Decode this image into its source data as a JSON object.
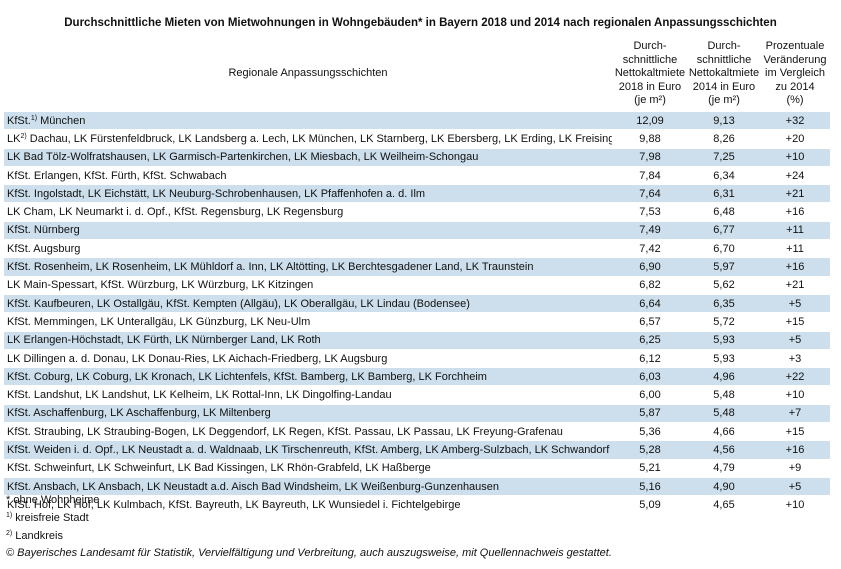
{
  "title": "Durchschnittliche Mieten von Mietwohnungen in Wohngebäuden* in Bayern 2018 und 2014 nach regionalen Anpassungsschichten",
  "table": {
    "header": {
      "region": "Regionale Anpassungsschichten",
      "col_2018": [
        "Durch-",
        "schnittliche",
        "Nettokaltmiete",
        "2018 in Euro",
        "(je m²)"
      ],
      "col_2014": [
        "Durch-",
        "schnittliche",
        "Nettokaltmiete",
        "2014 in Euro",
        "(je m²)"
      ],
      "col_change": [
        "Prozentuale",
        "Veränderung",
        "im Vergleich",
        "zu 2014",
        "(%)"
      ]
    },
    "rows": [
      {
        "region_prefix": "KfSt.",
        "region_sup": "1)",
        "region": " München",
        "mieten_2018": "12,09",
        "mieten_2014": "9,13",
        "change": "+32"
      },
      {
        "region_prefix": "LK",
        "region_sup": "2)",
        "region": " Dachau, LK Fürstenfeldbruck, LK Landsberg a. Lech, LK München, LK Starnberg, LK Ebersberg, LK Erding, LK Freising",
        "mieten_2018": "9,88",
        "mieten_2014": "8,26",
        "change": "+20"
      },
      {
        "region": "LK Bad Tölz-Wolfratshausen, LK Garmisch-Partenkirchen, LK Miesbach, LK Weilheim-Schongau",
        "mieten_2018": "7,98",
        "mieten_2014": "7,25",
        "change": "+10"
      },
      {
        "region": "KfSt. Erlangen, KfSt. Fürth, KfSt. Schwabach",
        "mieten_2018": "7,84",
        "mieten_2014": "6,34",
        "change": "+24"
      },
      {
        "region": "KfSt. Ingolstadt, LK Eichstätt, LK Neuburg-Schrobenhausen, LK Pfaffenhofen a. d. Ilm",
        "mieten_2018": "7,64",
        "mieten_2014": "6,31",
        "change": "+21"
      },
      {
        "region": "LK Cham, LK Neumarkt i. d. Opf., KfSt. Regensburg, LK Regensburg",
        "mieten_2018": "7,53",
        "mieten_2014": "6,48",
        "change": "+16"
      },
      {
        "region": "KfSt. Nürnberg",
        "mieten_2018": "7,49",
        "mieten_2014": "6,77",
        "change": "+11"
      },
      {
        "region": "KfSt. Augsburg",
        "mieten_2018": "7,42",
        "mieten_2014": "6,70",
        "change": "+11"
      },
      {
        "region": "KfSt. Rosenheim, LK Rosenheim, LK Mühldorf a. Inn, LK Altötting, LK Berchtesgadener Land, LK Traunstein",
        "mieten_2018": "6,90",
        "mieten_2014": "5,97",
        "change": "+16"
      },
      {
        "region": "LK Main-Spessart, KfSt. Würzburg, LK Würzburg, LK Kitzingen",
        "mieten_2018": "6,82",
        "mieten_2014": "5,62",
        "change": "+21"
      },
      {
        "region": "KfSt. Kaufbeuren, LK Ostallgäu, KfSt. Kempten (Allgäu), LK Oberallgäu, LK Lindau (Bodensee)",
        "mieten_2018": "6,64",
        "mieten_2014": "6,35",
        "change": "+5"
      },
      {
        "region": "KfSt. Memmingen, LK Unterallgäu, LK Günzburg, LK Neu-Ulm",
        "mieten_2018": "6,57",
        "mieten_2014": "5,72",
        "change": "+15"
      },
      {
        "region": "LK Erlangen-Höchstadt, LK Fürth, LK Nürnberger Land, LK Roth",
        "mieten_2018": "6,25",
        "mieten_2014": "5,93",
        "change": "+5"
      },
      {
        "region": "LK Dillingen a. d. Donau, LK Donau-Ries, LK Aichach-Friedberg, LK Augsburg",
        "mieten_2018": "6,12",
        "mieten_2014": "5,93",
        "change": "+3"
      },
      {
        "region": "KfSt. Coburg, LK Coburg, LK Kronach, LK Lichtenfels, KfSt. Bamberg, LK Bamberg, LK Forchheim",
        "mieten_2018": "6,03",
        "mieten_2014": "4,96",
        "change": "+22"
      },
      {
        "region": "KfSt. Landshut, LK Landshut, LK Kelheim, LK Rottal-Inn, LK Dingolfing-Landau",
        "mieten_2018": "6,00",
        "mieten_2014": "5,48",
        "change": "+10"
      },
      {
        "region": "KfSt. Aschaffenburg, LK Aschaffenburg, LK Miltenberg",
        "mieten_2018": "5,87",
        "mieten_2014": "5,48",
        "change": "+7"
      },
      {
        "region": "KfSt. Straubing, LK Straubing-Bogen, LK Deggendorf, LK Regen, KfSt. Passau, LK Passau, LK Freyung-Grafenau",
        "mieten_2018": "5,36",
        "mieten_2014": "4,66",
        "change": "+15"
      },
      {
        "region": "KfSt. Weiden i. d. Opf., LK Neustadt a. d. Waldnaab, LK Tirschenreuth, KfSt. Amberg, LK Amberg-Sulzbach, LK Schwandorf",
        "mieten_2018": "5,28",
        "mieten_2014": "4,56",
        "change": "+16"
      },
      {
        "region": "KfSt. Schweinfurt, LK Schweinfurt, LK Bad Kissingen, LK Rhön-Grabfeld, LK Haßberge",
        "mieten_2018": "5,21",
        "mieten_2014": "4,79",
        "change": "+9"
      },
      {
        "region": "KfSt. Ansbach, LK Ansbach, LK Neustadt a.d. Aisch Bad Windsheim, LK Weißenburg-Gunzenhausen",
        "mieten_2018": "5,16",
        "mieten_2014": "4,90",
        "change": "+5"
      },
      {
        "region": "KfSt. Hof, LK Hof, LK Kulmbach, KfSt. Bayreuth, LK Bayreuth, LK Wunsiedel i. Fichtelgebirge",
        "mieten_2018": "5,09",
        "mieten_2014": "4,65",
        "change": "+10"
      }
    ]
  },
  "footnotes": [
    {
      "text": "* ohne Wohnheime"
    },
    {
      "sup": "1)",
      "text": " kreisfreie Stadt"
    },
    {
      "sup": "2)",
      "text": " Landkreis"
    }
  ],
  "source": "© Bayerisches Landesamt für Statistik, Vervielfältigung und Verbreitung, auch auszugsweise, mit Quellennachweis gestattet."
}
